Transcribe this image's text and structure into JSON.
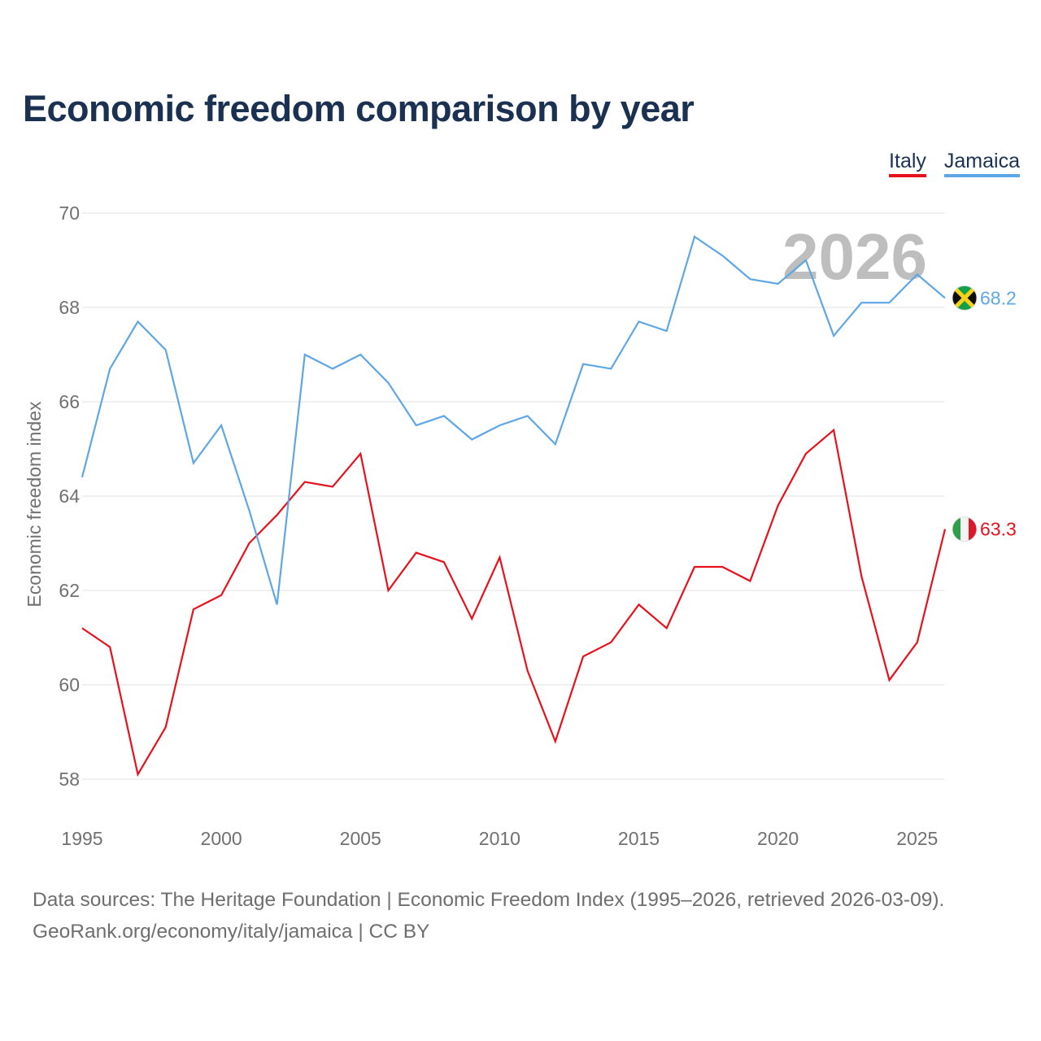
{
  "title": "Economic freedom comparison by year",
  "watermark_year": "2026",
  "source": {
    "line1": "Data sources: The Heritage Foundation | Economic Freedom Index (1995–2026, retrieved 2026-03-09).",
    "line2": "GeoRank.org/economy/italy/jamaica | CC BY"
  },
  "chart_data": {
    "type": "line",
    "title": "Economic freedom comparison by year",
    "xlabel": "",
    "ylabel": "Economic freedom index",
    "xlim": [
      1995,
      2026
    ],
    "ylim": [
      57,
      71
    ],
    "x_ticks": [
      1995,
      2000,
      2005,
      2010,
      2015,
      2020,
      2025
    ],
    "y_ticks": [
      58,
      60,
      62,
      64,
      66,
      68,
      70
    ],
    "grid": true,
    "legend_position": "top-right",
    "x": [
      1995,
      1996,
      1997,
      1998,
      1999,
      2000,
      2001,
      2002,
      2003,
      2004,
      2005,
      2006,
      2007,
      2008,
      2009,
      2010,
      2011,
      2012,
      2013,
      2014,
      2015,
      2016,
      2017,
      2018,
      2019,
      2020,
      2021,
      2022,
      2023,
      2024,
      2025,
      2026
    ],
    "series": [
      {
        "name": "Italy",
        "color": "#e8101b",
        "end_label": "63.3",
        "flag": "italy-flag",
        "values": [
          61.2,
          60.8,
          58.1,
          59.1,
          61.6,
          61.9,
          63.0,
          63.6,
          64.3,
          64.2,
          64.9,
          62.0,
          62.8,
          62.6,
          61.4,
          62.7,
          60.3,
          58.8,
          60.6,
          60.9,
          61.7,
          61.2,
          62.5,
          62.5,
          62.2,
          63.8,
          64.9,
          65.4,
          62.3,
          60.1,
          60.9,
          63.3
        ]
      },
      {
        "name": "Jamaica",
        "color": "#5ea6e6",
        "end_label": "68.2",
        "flag": "jamaica-flag",
        "values": [
          64.4,
          66.7,
          67.7,
          67.1,
          64.7,
          65.5,
          63.7,
          61.7,
          67.0,
          66.7,
          67.0,
          66.4,
          65.5,
          65.7,
          65.2,
          65.5,
          65.7,
          65.1,
          66.8,
          66.7,
          67.7,
          67.5,
          69.5,
          69.1,
          68.6,
          68.5,
          69.0,
          67.4,
          68.1,
          68.1,
          68.7,
          68.2
        ]
      }
    ]
  }
}
